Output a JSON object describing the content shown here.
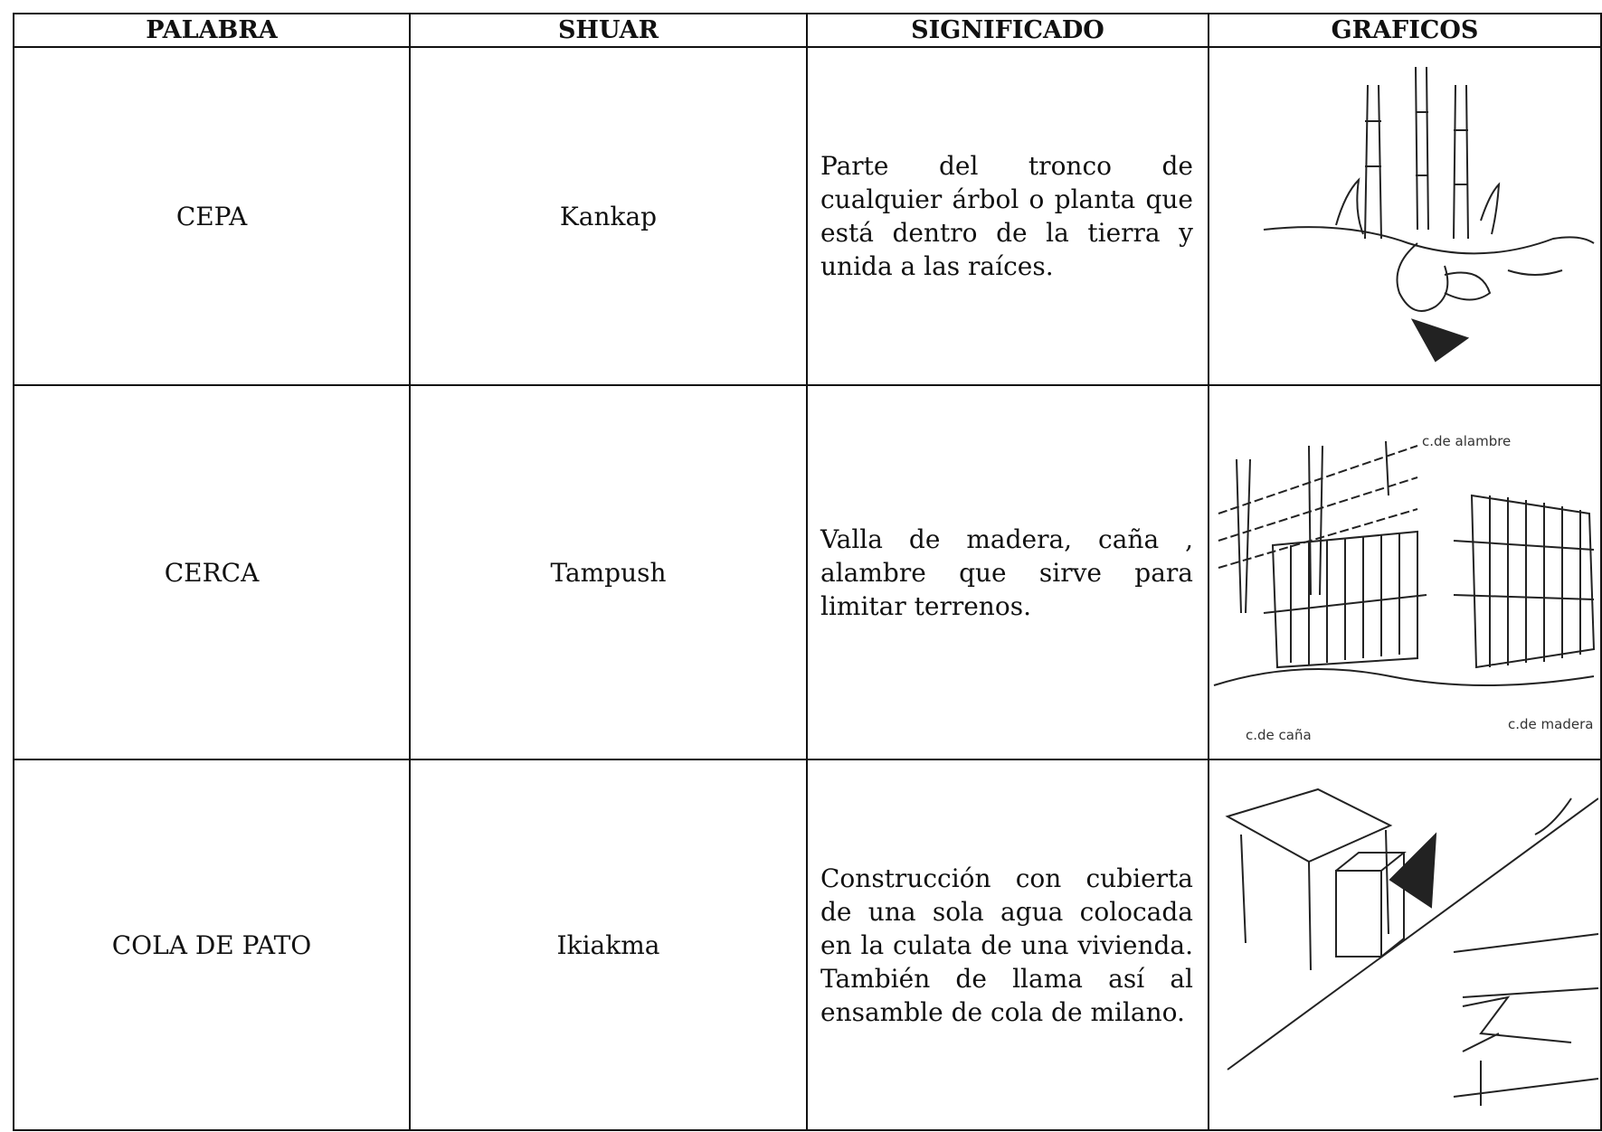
{
  "table": {
    "headers": [
      "PALABRA",
      "SHUAR",
      "SIGNIFICADO",
      "GRAFICOS"
    ],
    "rows": [
      {
        "palabra": "CEPA",
        "shuar": "Kankap",
        "significado": "Parte del tronco de cualquier árbol o planta que está dentro de la tierra y unida a las raíces."
      },
      {
        "palabra": "CERCA",
        "shuar": "Tampush",
        "significado": "Valla de madera, caña , alambre que sirve para limitar terrenos.",
        "graphic_labels": [
          "c.de alambre",
          "c.de caña",
          "c.de madera"
        ]
      },
      {
        "palabra": "COLA DE PATO",
        "shuar": "Ikiakma",
        "significado": "Construcción con cubierta de una sola agua colocada en la culata de una vivienda. También de llama así al ensamble de cola de milano."
      }
    ]
  }
}
